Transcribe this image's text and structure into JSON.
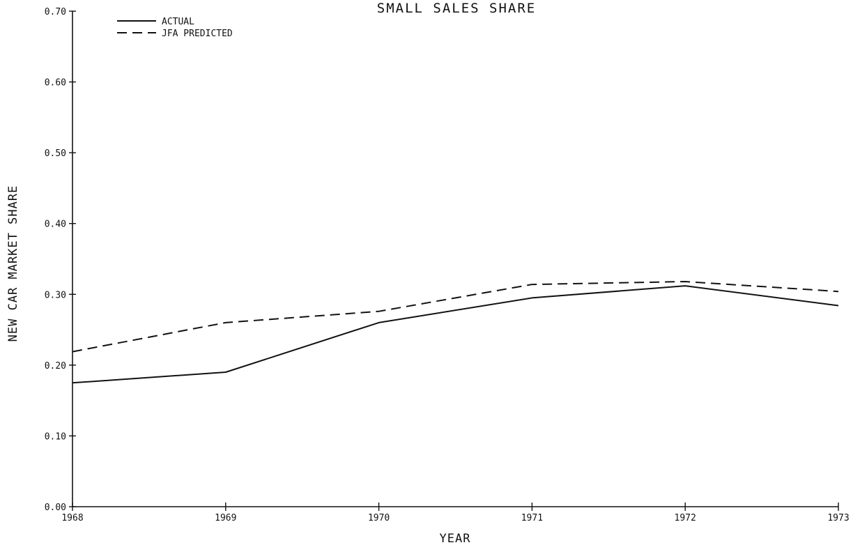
{
  "chart_data": {
    "type": "line",
    "title": "SMALL SALES SHARE",
    "xlabel": "YEAR",
    "ylabel": "NEW CAR MARKET SHARE",
    "x": [
      "1968",
      "1969",
      "1970",
      "1971",
      "1972",
      "1973"
    ],
    "x_tick_labels": [
      "1968",
      "1969",
      "1970",
      "1971",
      "1972",
      "1973"
    ],
    "y_tick_labels": [
      "0.00",
      "0.10",
      "0.20",
      "0.30",
      "0.40",
      "0.50",
      "0.60",
      "0.70"
    ],
    "ylim": [
      0,
      0.7
    ],
    "grid": false,
    "legend_position": "top-left",
    "series": [
      {
        "name": "ACTUAL",
        "style": "solid",
        "color": "#111111",
        "values": [
          0.175,
          0.19,
          0.26,
          0.295,
          0.312,
          0.284
        ]
      },
      {
        "name": "JFA PREDICTED",
        "style": "dashed",
        "color": "#111111",
        "values": [
          0.219,
          0.26,
          0.276,
          0.314,
          0.318,
          0.304
        ]
      }
    ]
  }
}
